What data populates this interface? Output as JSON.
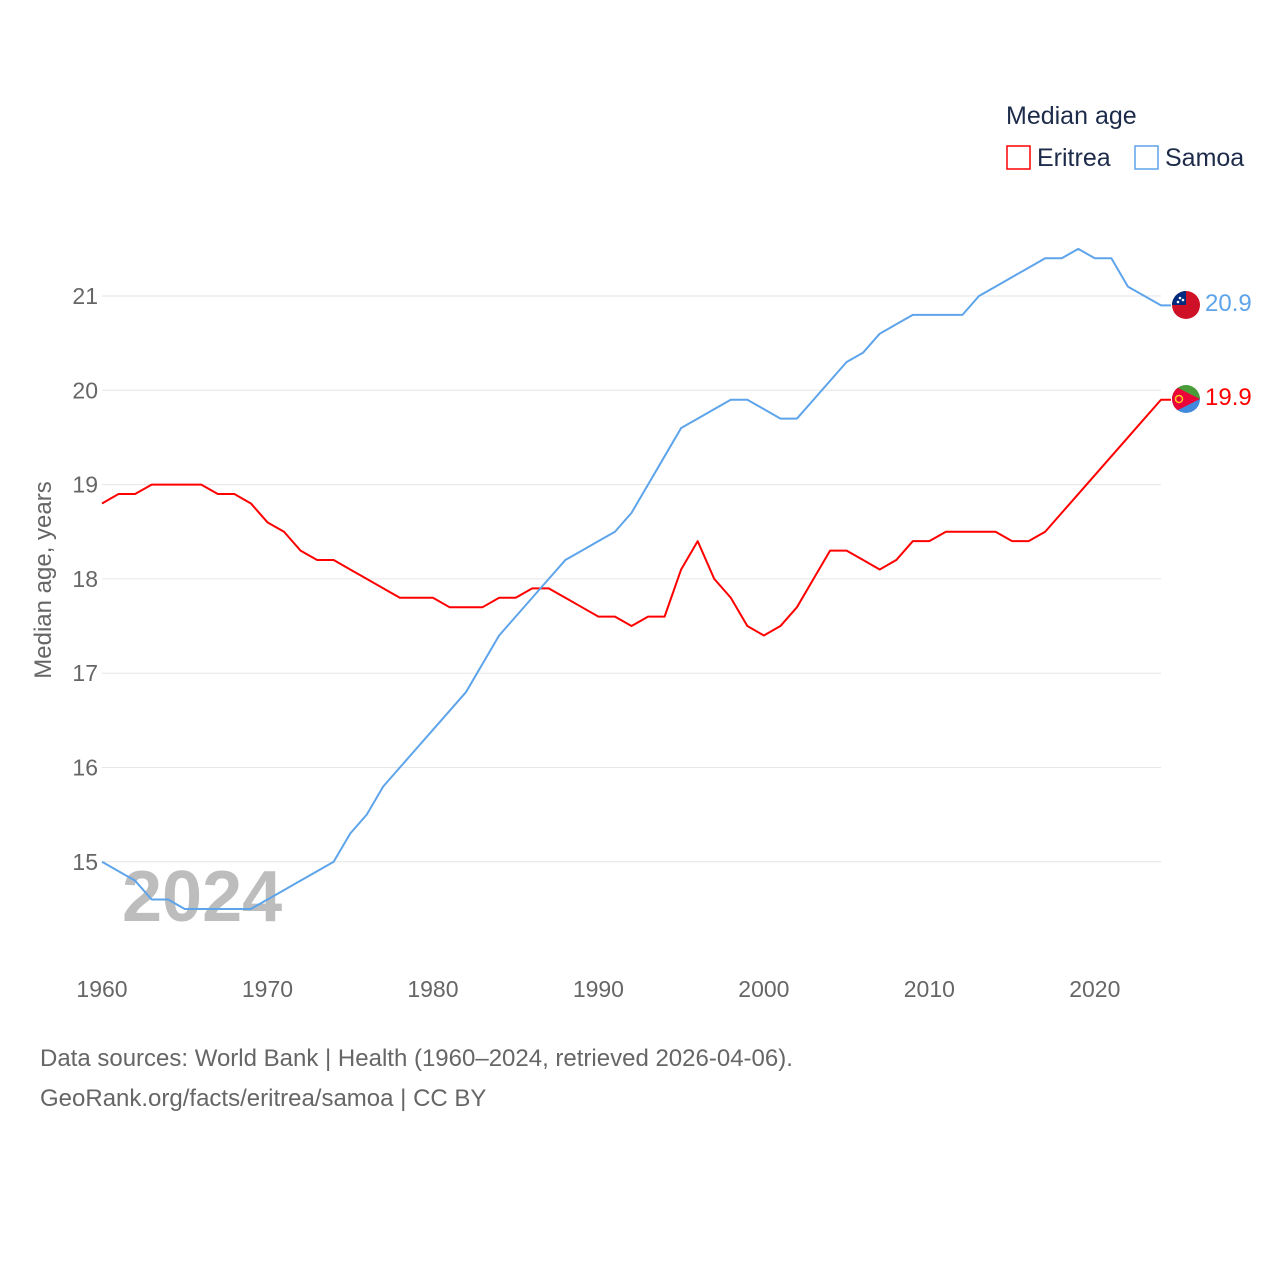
{
  "chart_data": {
    "type": "line",
    "title": "Median age",
    "ylabel": "Median age, years",
    "xlabel": "",
    "year_label": "2024",
    "xlim": [
      1960,
      2024
    ],
    "ylim": [
      14.3,
      21.6
    ],
    "x_ticks": [
      1960,
      1970,
      1980,
      1990,
      2000,
      2010,
      2020
    ],
    "y_ticks": [
      15,
      16,
      17,
      18,
      19,
      20,
      21
    ],
    "grid": true,
    "legend_position": "top-right",
    "x": [
      1960,
      1961,
      1962,
      1963,
      1964,
      1965,
      1966,
      1967,
      1968,
      1969,
      1970,
      1971,
      1972,
      1973,
      1974,
      1975,
      1976,
      1977,
      1978,
      1979,
      1980,
      1981,
      1982,
      1983,
      1984,
      1985,
      1986,
      1987,
      1988,
      1989,
      1990,
      1991,
      1992,
      1993,
      1994,
      1995,
      1996,
      1997,
      1998,
      1999,
      2000,
      2001,
      2002,
      2003,
      2004,
      2005,
      2006,
      2007,
      2008,
      2009,
      2010,
      2011,
      2012,
      2013,
      2014,
      2015,
      2016,
      2017,
      2018,
      2019,
      2020,
      2021,
      2022,
      2023,
      2024
    ],
    "series": [
      {
        "name": "Eritrea",
        "color": "#ff0000",
        "end_label": "19.9",
        "values": [
          18.8,
          18.9,
          18.9,
          19.0,
          19.0,
          19.0,
          19.0,
          18.9,
          18.9,
          18.8,
          18.6,
          18.5,
          18.3,
          18.2,
          18.2,
          18.1,
          18.0,
          17.9,
          17.8,
          17.8,
          17.8,
          17.7,
          17.7,
          17.7,
          17.8,
          17.8,
          17.9,
          17.9,
          17.8,
          17.7,
          17.6,
          17.6,
          17.5,
          17.6,
          17.6,
          18.1,
          18.4,
          18.0,
          17.8,
          17.5,
          17.4,
          17.5,
          17.7,
          18.0,
          18.3,
          18.3,
          18.2,
          18.1,
          18.2,
          18.4,
          18.4,
          18.5,
          18.5,
          18.5,
          18.5,
          18.4,
          18.4,
          18.5,
          18.7,
          18.9,
          19.1,
          19.3,
          19.5,
          19.7,
          19.9
        ]
      },
      {
        "name": "Samoa",
        "color": "#5ea4ea",
        "end_label": "20.9",
        "values": [
          15.0,
          14.9,
          14.8,
          14.6,
          14.6,
          14.5,
          14.5,
          14.5,
          14.5,
          14.5,
          14.6,
          14.7,
          14.8,
          14.9,
          15.0,
          15.3,
          15.5,
          15.8,
          16.0,
          16.2,
          16.4,
          16.6,
          16.8,
          17.1,
          17.4,
          17.6,
          17.8,
          18.0,
          18.2,
          18.3,
          18.4,
          18.5,
          18.7,
          19.0,
          19.3,
          19.6,
          19.7,
          19.8,
          19.9,
          19.9,
          19.8,
          19.7,
          19.7,
          19.9,
          20.1,
          20.3,
          20.4,
          20.6,
          20.7,
          20.8,
          20.8,
          20.8,
          20.8,
          21.0,
          21.1,
          21.2,
          21.3,
          21.4,
          21.4,
          21.5,
          21.4,
          21.4,
          21.1,
          21.0,
          20.9
        ]
      }
    ]
  },
  "footer": {
    "sources": "Data sources: World Bank | Health (1960–2024, retrieved 2026-04-06).",
    "credit": "GeoRank.org/facts/eritrea/samoa | CC BY"
  }
}
